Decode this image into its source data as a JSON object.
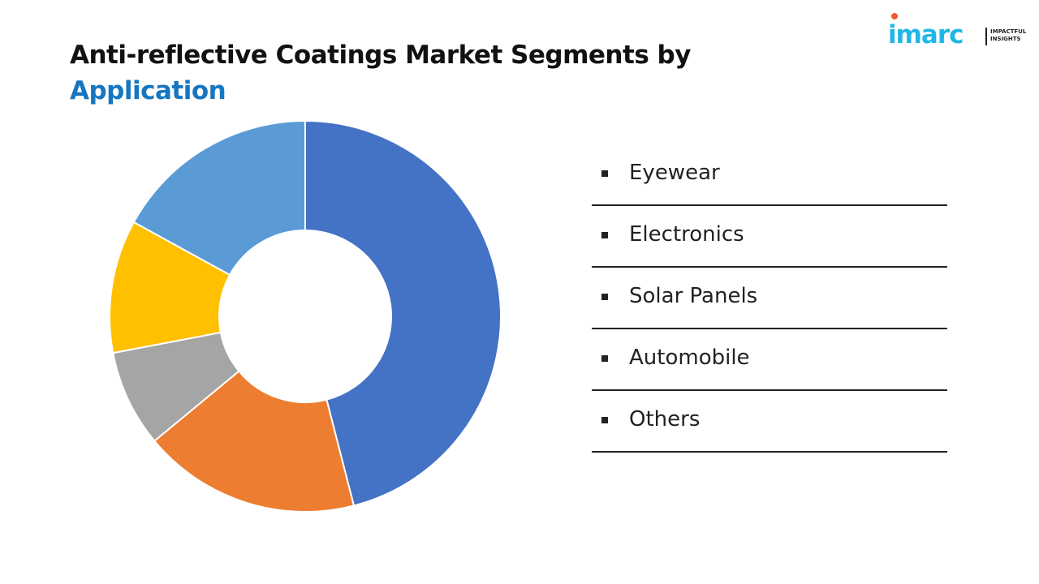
{
  "header": {
    "title_line1": "Anti-reflective Coatings Market Segments by",
    "title_line2": "Application"
  },
  "logo": {
    "word": "imarc",
    "tagline_line1": "IMPACTFUL",
    "tagline_line2": "INSIGHTS",
    "brand_color": "#1fb7e6",
    "dot_color": "#ef5a2a"
  },
  "chart_data": {
    "type": "pie",
    "style": "donut",
    "title": "Anti-reflective Coatings Market Segments by Application",
    "categories": [
      "Eyewear",
      "Electronics",
      "Solar Panels",
      "Automobile",
      "Others"
    ],
    "values": [
      46,
      18,
      8,
      11,
      17
    ],
    "colors": [
      "#4472c4",
      "#ed7d31",
      "#a5a5a5",
      "#ffc000",
      "#5b9bd5"
    ],
    "legend": {
      "position": "right"
    },
    "data_labels": false
  }
}
